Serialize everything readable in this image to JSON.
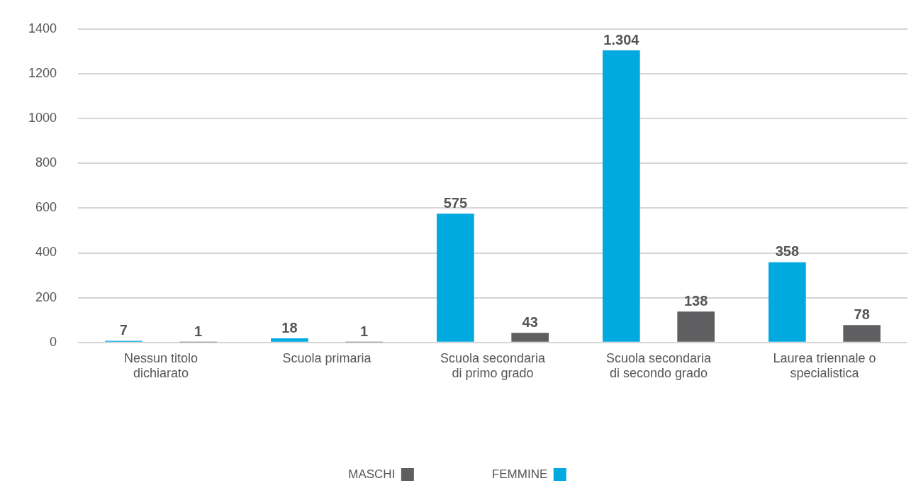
{
  "chart_data": {
    "type": "bar",
    "categories": [
      "Nessun titolo dichiarato",
      "Scuola primaria",
      "Scuola secondaria di primo grado",
      "Scuola secondaria di secondo grado",
      "Laurea triennale o specialistica"
    ],
    "series": [
      {
        "name": "FEMMINE",
        "color": "#00a9e0",
        "values": [
          7,
          18,
          575,
          1304,
          358
        ],
        "value_labels": [
          "7",
          "18",
          "575",
          "1.304",
          "358"
        ]
      },
      {
        "name": "MASCHI",
        "color": "#5f5f61",
        "values": [
          1,
          1,
          43,
          138,
          78
        ],
        "value_labels": [
          "1",
          "1",
          "43",
          "138",
          "78"
        ]
      }
    ],
    "ylim": [
      0,
      1400
    ],
    "yticks": [
      0,
      200,
      400,
      600,
      800,
      1000,
      1200,
      1400
    ],
    "grid": "y",
    "legend": "bottom"
  }
}
